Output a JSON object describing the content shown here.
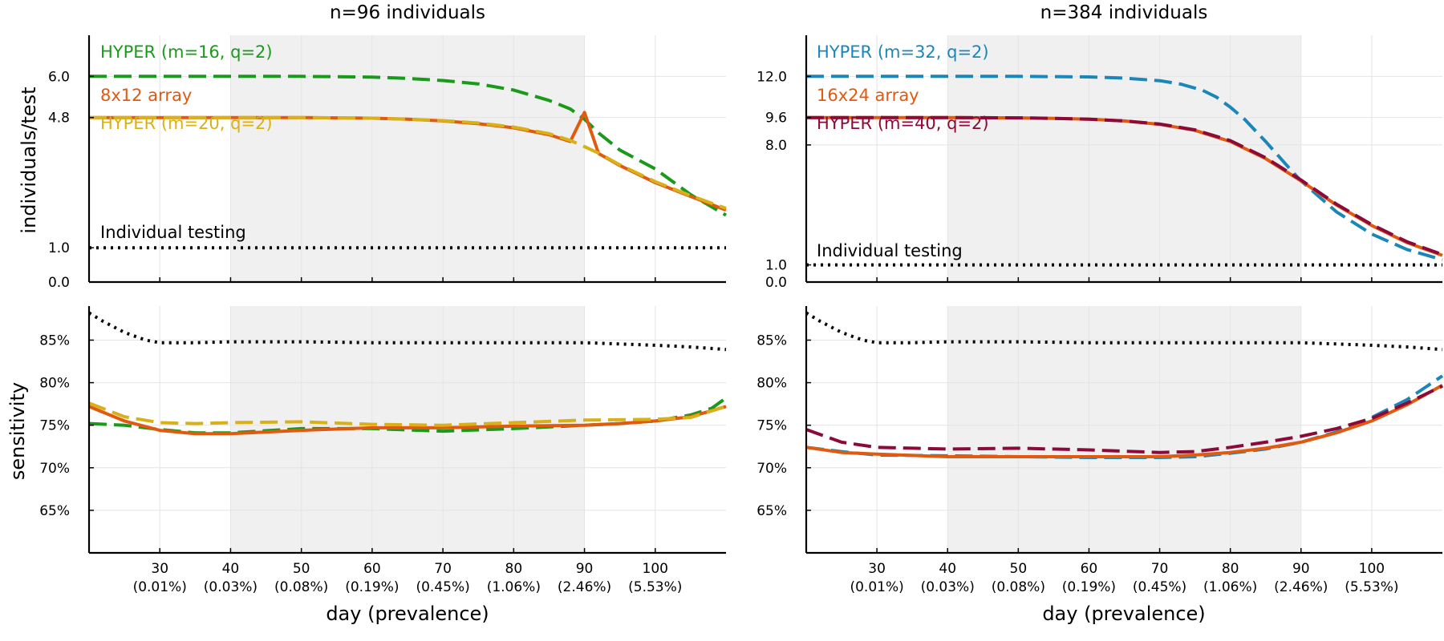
{
  "colors": {
    "shade": "#f0f0f0",
    "grid": "#e4e4e4",
    "green": "#1a9a1a",
    "orange": "#e05a10",
    "gold": "#d8b018",
    "blue": "#1b86b8",
    "crimson": "#8b0a3a",
    "black": "#000000"
  },
  "chart_data": [
    {
      "type": "line",
      "title": "n=96 individuals",
      "ylabel": "individuals/test",
      "xlim": [
        20,
        110
      ],
      "ylim": [
        0,
        7.2
      ],
      "yticks": [
        0.0,
        1.0,
        4.8,
        6.0
      ],
      "yticklabels": [
        "0.0",
        "1.0",
        "4.8",
        "6.0"
      ],
      "xticks": [
        30,
        40,
        50,
        60,
        70,
        80,
        90,
        100
      ],
      "shaded_region": [
        40,
        90
      ],
      "series": [
        {
          "name": "HYPER (m=16, q=2)",
          "color": "green",
          "style": "dash",
          "x": [
            20,
            30,
            40,
            50,
            60,
            65,
            70,
            75,
            80,
            85,
            88,
            90,
            92,
            95,
            100,
            105,
            110
          ],
          "y": [
            6.0,
            6.0,
            6.0,
            6.0,
            5.98,
            5.94,
            5.88,
            5.78,
            5.6,
            5.3,
            5.05,
            4.75,
            4.35,
            3.85,
            3.3,
            2.55,
            1.95
          ]
        },
        {
          "name": "8x12 array",
          "color": "orange",
          "style": "solid",
          "x": [
            20,
            30,
            40,
            50,
            55,
            60,
            65,
            70,
            75,
            80,
            85,
            88,
            90,
            92,
            95,
            100,
            105,
            110
          ],
          "y": [
            4.8,
            4.8,
            4.8,
            4.8,
            4.79,
            4.78,
            4.75,
            4.7,
            4.62,
            4.5,
            4.3,
            4.1,
            4.95,
            3.75,
            3.4,
            2.9,
            2.5,
            2.1
          ]
        },
        {
          "name": "HYPER (m=20, q=2)",
          "color": "gold",
          "style": "dash",
          "x": [
            20,
            30,
            40,
            50,
            55,
            60,
            65,
            70,
            75,
            80,
            85,
            88,
            90,
            92,
            95,
            100,
            105,
            110
          ],
          "y": [
            4.8,
            4.8,
            4.8,
            4.8,
            4.79,
            4.78,
            4.75,
            4.71,
            4.64,
            4.52,
            4.33,
            4.13,
            3.95,
            3.76,
            3.42,
            2.93,
            2.52,
            2.15
          ]
        },
        {
          "name": "Individual testing",
          "color": "black",
          "style": "dot",
          "x": [
            20,
            110
          ],
          "y": [
            1.0,
            1.0
          ]
        }
      ]
    },
    {
      "type": "line",
      "title": "n=384 individuals",
      "ylabel": "",
      "xlim": [
        20,
        110
      ],
      "ylim": [
        0,
        14.4
      ],
      "yticks": [
        0.0,
        1.0,
        8.0,
        9.6,
        12.0
      ],
      "yticklabels": [
        "0.0",
        "1.0",
        "8.0",
        "9.6",
        "12.0"
      ],
      "xticks": [
        30,
        40,
        50,
        60,
        70,
        80,
        90,
        100
      ],
      "shaded_region": [
        40,
        90
      ],
      "series": [
        {
          "name": "HYPER (m=32, q=2)",
          "color": "blue",
          "style": "dash",
          "x": [
            20,
            30,
            40,
            50,
            60,
            65,
            70,
            73,
            76,
            78,
            80,
            82,
            85,
            88,
            90,
            95,
            100,
            105,
            110
          ],
          "y": [
            12.0,
            12.0,
            12.0,
            12.0,
            11.97,
            11.9,
            11.75,
            11.55,
            11.2,
            10.8,
            10.2,
            9.5,
            8.2,
            6.8,
            5.9,
            4.1,
            2.8,
            1.9,
            1.3
          ]
        },
        {
          "name": "16x24 array",
          "color": "orange",
          "style": "solid",
          "x": [
            20,
            30,
            40,
            50,
            55,
            60,
            65,
            70,
            75,
            80,
            85,
            90,
            95,
            100,
            105,
            110
          ],
          "y": [
            9.6,
            9.6,
            9.6,
            9.58,
            9.55,
            9.5,
            9.4,
            9.2,
            8.85,
            8.2,
            7.2,
            5.9,
            4.5,
            3.3,
            2.3,
            1.55
          ]
        },
        {
          "name": "HYPER (m=40, q=2)",
          "color": "crimson",
          "style": "dash",
          "x": [
            20,
            30,
            40,
            50,
            55,
            60,
            65,
            70,
            75,
            80,
            85,
            90,
            95,
            100,
            105,
            110
          ],
          "y": [
            9.6,
            9.6,
            9.6,
            9.58,
            9.55,
            9.5,
            9.4,
            9.22,
            8.88,
            8.25,
            7.25,
            5.95,
            4.55,
            3.35,
            2.35,
            1.6
          ]
        },
        {
          "name": "Individual testing",
          "color": "black",
          "style": "dot",
          "x": [
            20,
            110
          ],
          "y": [
            1.0,
            1.0
          ]
        }
      ]
    },
    {
      "type": "line",
      "title": "",
      "ylabel": "sensitivity",
      "xlabel": "day (prevalence)",
      "xlim": [
        20,
        110
      ],
      "ylim": [
        60,
        89
      ],
      "yticks": [
        65,
        70,
        75,
        80,
        85
      ],
      "yticklabels": [
        "65%",
        "70%",
        "75%",
        "80%",
        "85%"
      ],
      "xticks": [
        30,
        40,
        50,
        60,
        70,
        80,
        90,
        100
      ],
      "xticklabels": [
        "30",
        "40",
        "50",
        "60",
        "70",
        "80",
        "90",
        "100"
      ],
      "xticksublabels": [
        "(0.01%)",
        "(0.03%)",
        "(0.08%)",
        "(0.19%)",
        "(0.45%)",
        "(1.06%)",
        "(2.46%)",
        "(5.53%)"
      ],
      "shaded_region": [
        40,
        90
      ],
      "series": [
        {
          "name": "Individual testing",
          "color": "black",
          "style": "dot",
          "x": [
            20,
            22,
            25,
            28,
            30,
            35,
            40,
            50,
            60,
            70,
            80,
            90,
            100,
            105,
            110
          ],
          "y": [
            88.2,
            87.2,
            85.9,
            85.0,
            84.7,
            84.7,
            84.8,
            84.8,
            84.7,
            84.7,
            84.7,
            84.7,
            84.4,
            84.2,
            83.9
          ]
        },
        {
          "name": "HYPER (m=16, q=2)",
          "color": "green",
          "style": "dash",
          "x": [
            20,
            25,
            30,
            35,
            40,
            50,
            60,
            70,
            80,
            90,
            95,
            100,
            105,
            108,
            110
          ],
          "y": [
            75.2,
            75.0,
            74.5,
            74.1,
            74.1,
            74.6,
            74.6,
            74.3,
            74.6,
            75.0,
            75.2,
            75.5,
            76.2,
            77.0,
            78.2
          ]
        },
        {
          "name": "8x12 array",
          "color": "orange",
          "style": "solid",
          "x": [
            20,
            25,
            30,
            35,
            40,
            50,
            60,
            70,
            80,
            90,
            95,
            100,
            105,
            110
          ],
          "y": [
            77.2,
            75.5,
            74.4,
            74.0,
            74.0,
            74.4,
            74.7,
            74.7,
            74.9,
            75.0,
            75.2,
            75.5,
            76.0,
            77.2
          ]
        },
        {
          "name": "HYPER (m=20, q=2)",
          "color": "gold",
          "style": "dash",
          "x": [
            20,
            25,
            30,
            35,
            40,
            50,
            60,
            70,
            80,
            90,
            100,
            105,
            110
          ],
          "y": [
            77.6,
            76.0,
            75.3,
            75.2,
            75.3,
            75.4,
            75.1,
            75.0,
            75.3,
            75.6,
            75.7,
            75.9,
            77.2
          ]
        }
      ]
    },
    {
      "type": "line",
      "title": "",
      "ylabel": "",
      "xlabel": "day (prevalence)",
      "xlim": [
        20,
        110
      ],
      "ylim": [
        60,
        89
      ],
      "yticks": [
        65,
        70,
        75,
        80,
        85
      ],
      "yticklabels": [
        "65%",
        "70%",
        "75%",
        "80%",
        "85%"
      ],
      "xticks": [
        30,
        40,
        50,
        60,
        70,
        80,
        90,
        100
      ],
      "xticklabels": [
        "30",
        "40",
        "50",
        "60",
        "70",
        "80",
        "90",
        "100"
      ],
      "xticksublabels": [
        "(0.01%)",
        "(0.03%)",
        "(0.08%)",
        "(0.19%)",
        "(0.45%)",
        "(1.06%)",
        "(2.46%)",
        "(5.53%)"
      ],
      "shaded_region": [
        40,
        90
      ],
      "series": [
        {
          "name": "Individual testing",
          "color": "black",
          "style": "dot",
          "x": [
            20,
            22,
            25,
            28,
            30,
            35,
            40,
            50,
            60,
            70,
            80,
            90,
            100,
            105,
            110
          ],
          "y": [
            88.2,
            87.2,
            85.9,
            85.0,
            84.7,
            84.7,
            84.8,
            84.8,
            84.7,
            84.7,
            84.7,
            84.7,
            84.4,
            84.2,
            83.9
          ]
        },
        {
          "name": "HYPER (m=32, q=2)",
          "color": "blue",
          "style": "dash",
          "x": [
            20,
            25,
            30,
            40,
            50,
            60,
            70,
            75,
            80,
            85,
            90,
            95,
            100,
            105,
            110
          ],
          "y": [
            72.4,
            71.9,
            71.5,
            71.4,
            71.3,
            71.2,
            71.2,
            71.3,
            71.7,
            72.2,
            73.0,
            74.2,
            75.9,
            78.0,
            80.8
          ]
        },
        {
          "name": "16x24 array",
          "color": "orange",
          "style": "solid",
          "x": [
            20,
            25,
            30,
            40,
            50,
            60,
            70,
            75,
            80,
            85,
            90,
            95,
            100,
            105,
            110
          ],
          "y": [
            72.4,
            71.8,
            71.6,
            71.3,
            71.3,
            71.3,
            71.3,
            71.5,
            71.8,
            72.3,
            73.0,
            74.1,
            75.5,
            77.4,
            79.7
          ]
        },
        {
          "name": "HYPER (m=40, q=2)",
          "color": "crimson",
          "style": "dash",
          "x": [
            20,
            25,
            30,
            40,
            50,
            60,
            70,
            75,
            80,
            85,
            90,
            95,
            100,
            105,
            110
          ],
          "y": [
            74.5,
            73.0,
            72.4,
            72.2,
            72.3,
            72.1,
            71.8,
            71.9,
            72.4,
            73.0,
            73.7,
            74.6,
            75.8,
            77.6,
            79.6
          ]
        }
      ]
    }
  ]
}
